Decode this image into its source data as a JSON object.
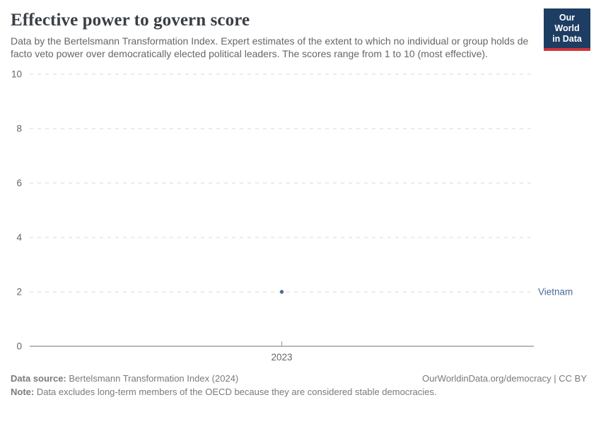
{
  "header": {
    "title": "Effective power to govern score",
    "subtitle": "Data by the Bertelsmann Transformation Index. Expert estimates of the extent to which no individual or group holds de facto veto power over democratically elected political leaders. The scores range from 1 to 10 (most effective).",
    "logo": {
      "line1": "Our World",
      "line2": "in Data",
      "bg_color": "#1d3d63",
      "accent_color": "#d13239"
    }
  },
  "chart_data": {
    "type": "scatter",
    "title": "Effective power to govern score",
    "x": [
      2023
    ],
    "xtick_labels": [
      "2023"
    ],
    "yticks": [
      0,
      2,
      4,
      6,
      8,
      10
    ],
    "ylim": [
      0,
      10
    ],
    "xlabel": "",
    "ylabel": "",
    "grid": "horizontal-dashed",
    "colors": {
      "gridline": "#dadada",
      "axis_line": "#a1a1a1",
      "tick_label": "#666666"
    },
    "series": [
      {
        "name": "Vietnam",
        "color": "#4C6A9C",
        "points": [
          {
            "x": 2023,
            "y": 2
          }
        ],
        "label_position": "right"
      }
    ]
  },
  "footer": {
    "source_label": "Data source:",
    "source_text": " Bertelsmann Transformation Index (2024)",
    "license_text": "OurWorldinData.org/democracy | CC BY",
    "note_label": "Note:",
    "note_text": " Data excludes long-term members of the OECD because they are considered stable democracies."
  }
}
